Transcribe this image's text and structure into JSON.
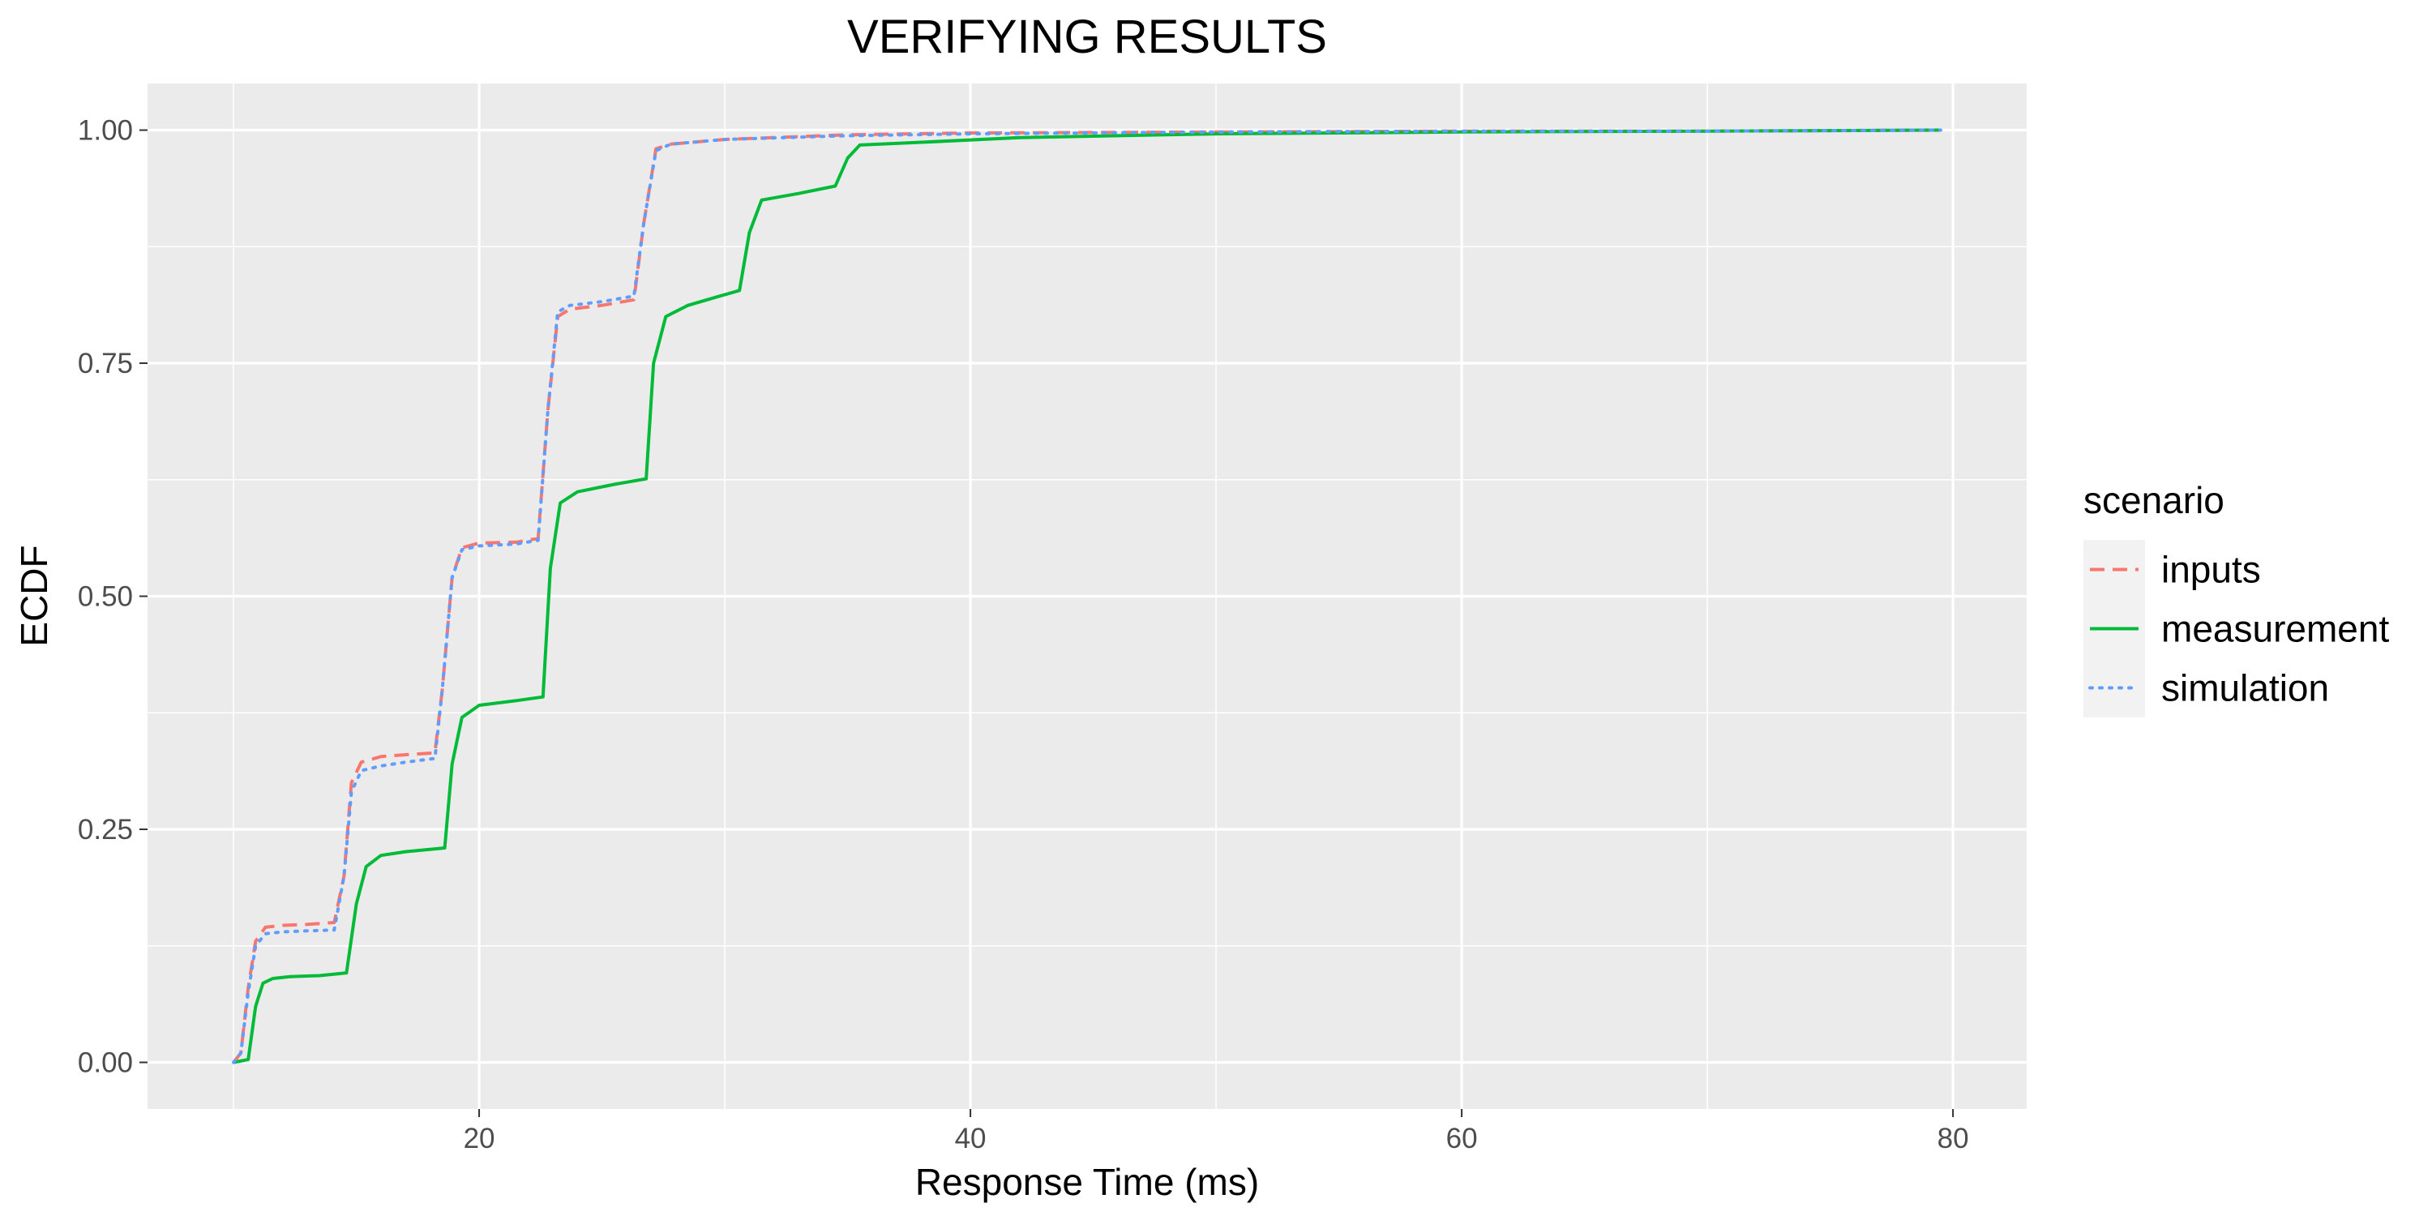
{
  "chart_data": {
    "type": "line",
    "title": "VERIFYING RESULTS",
    "xlabel": "Response Time (ms)",
    "ylabel": "ECDF",
    "xlim": [
      6.5,
      83
    ],
    "ylim": [
      -0.05,
      1.05
    ],
    "x_ticks": [
      20,
      40,
      60,
      80
    ],
    "x_tick_labels": [
      "20",
      "40",
      "60",
      "80"
    ],
    "y_ticks": [
      0,
      0.25,
      0.5,
      0.75,
      1.0
    ],
    "y_tick_labels": [
      "0.00",
      "0.25",
      "0.50",
      "0.75",
      "1.00"
    ],
    "grid": true,
    "legend": {
      "title": "scenario",
      "position": "right"
    },
    "series": [
      {
        "name": "inputs",
        "color": "#F8766D",
        "dash": "dashed",
        "x": [
          10.0,
          10.3,
          10.6,
          10.9,
          11.3,
          12.0,
          13.0,
          14.1,
          14.5,
          14.8,
          15.2,
          16.0,
          17.0,
          18.2,
          18.5,
          18.9,
          19.3,
          20.0,
          21.5,
          22.4,
          22.8,
          23.2,
          23.7,
          25.0,
          26.3,
          26.7,
          27.2,
          27.8,
          30.0,
          35.0,
          40.0,
          50.0,
          60.0,
          70.0,
          79.5
        ],
        "y": [
          0.0,
          0.01,
          0.08,
          0.13,
          0.145,
          0.147,
          0.148,
          0.15,
          0.2,
          0.3,
          0.322,
          0.328,
          0.33,
          0.332,
          0.4,
          0.52,
          0.552,
          0.557,
          0.558,
          0.562,
          0.7,
          0.8,
          0.808,
          0.812,
          0.818,
          0.9,
          0.98,
          0.985,
          0.99,
          0.995,
          0.997,
          0.998,
          0.999,
          0.999,
          1.0
        ]
      },
      {
        "name": "measurement",
        "color": "#00BA38",
        "dash": "solid",
        "x": [
          10.0,
          10.6,
          10.9,
          11.2,
          11.6,
          12.3,
          13.5,
          14.6,
          15.0,
          15.4,
          16.0,
          17.0,
          18.6,
          18.9,
          19.3,
          20.0,
          21.5,
          22.6,
          22.9,
          23.3,
          24.0,
          25.5,
          26.8,
          27.1,
          27.6,
          28.5,
          29.8,
          30.6,
          31.0,
          31.5,
          33.0,
          34.5,
          35.0,
          35.5,
          38.0,
          42.0,
          50.0,
          60.0,
          70.0,
          79.5
        ],
        "y": [
          0.0,
          0.003,
          0.06,
          0.085,
          0.09,
          0.092,
          0.093,
          0.096,
          0.17,
          0.21,
          0.222,
          0.226,
          0.23,
          0.32,
          0.37,
          0.383,
          0.388,
          0.392,
          0.53,
          0.6,
          0.612,
          0.62,
          0.626,
          0.75,
          0.8,
          0.812,
          0.822,
          0.828,
          0.89,
          0.925,
          0.932,
          0.94,
          0.97,
          0.984,
          0.987,
          0.992,
          0.996,
          0.998,
          0.999,
          1.0
        ]
      },
      {
        "name": "simulation",
        "color": "#619CFF",
        "dash": "dotted",
        "x": [
          10.0,
          10.3,
          10.6,
          10.9,
          11.3,
          12.0,
          13.0,
          14.1,
          14.5,
          14.8,
          15.2,
          16.0,
          17.0,
          18.2,
          18.5,
          18.9,
          19.3,
          20.0,
          21.5,
          22.4,
          22.8,
          23.2,
          23.7,
          25.0,
          26.3,
          26.7,
          27.2,
          27.8,
          30.0,
          35.0,
          40.0,
          50.0,
          60.0,
          70.0,
          79.5
        ],
        "y": [
          0.0,
          0.01,
          0.075,
          0.125,
          0.138,
          0.14,
          0.141,
          0.142,
          0.2,
          0.29,
          0.313,
          0.318,
          0.322,
          0.326,
          0.4,
          0.52,
          0.55,
          0.554,
          0.556,
          0.56,
          0.7,
          0.805,
          0.812,
          0.816,
          0.822,
          0.9,
          0.978,
          0.985,
          0.99,
          0.994,
          0.996,
          0.998,
          0.999,
          0.999,
          1.0
        ]
      }
    ]
  }
}
